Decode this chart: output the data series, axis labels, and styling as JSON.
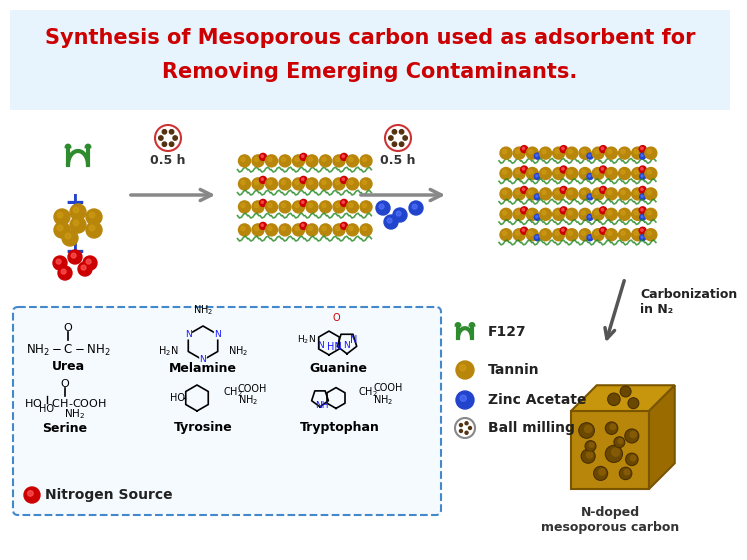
{
  "title_line1": "Synthesis of Mesoporous carbon used as adsorbent for",
  "title_line2": "Removing Emerging Contaminants.",
  "title_color": "#cc0000",
  "title_fontsize": 15,
  "title_fontstyle": "bold",
  "bg_color": "#ffffff",
  "header_bg": "#e8f4fd",
  "arrow_color": "#888888",
  "step1_label": "0.5 h",
  "step2_label": "0.5 h",
  "carbonization_label": "Carbonization\nin N₂",
  "nitrogen_source_label": "Nitrogen Source",
  "ndoped_label": "N-doped\nmesoporous carbon",
  "ndoped_color": "#333333",
  "box_edge_color": "#4488cc",
  "box_face_color": "#f5faff",
  "tannin_color": "#b8860b",
  "tannin_highlight": "#d4a017",
  "red_color": "#cc0000",
  "blue_color": "#2244cc",
  "green_color": "#2e8b2e"
}
